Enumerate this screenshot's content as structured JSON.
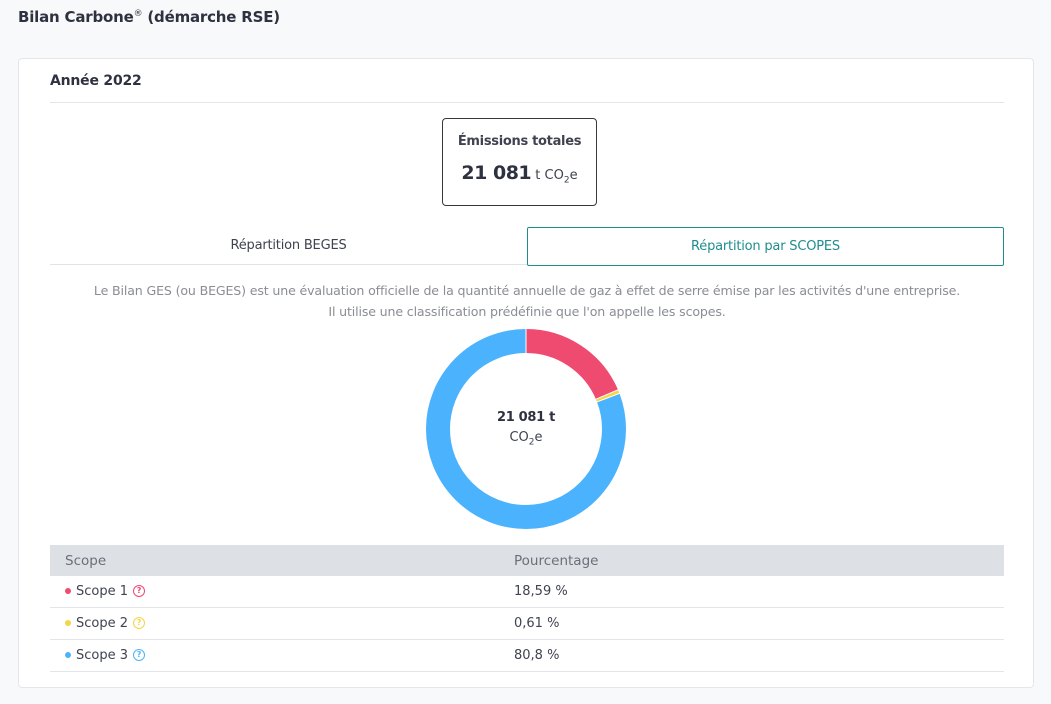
{
  "page": {
    "title": "Bilan Carbone",
    "title_sup": "®",
    "title_suffix": " (démarche RSE)"
  },
  "card": {
    "year_label": "Année 2022"
  },
  "totals": {
    "label": "Émissions totales",
    "value": "21 081",
    "unit_prefix": "t CO",
    "unit_sub": "2",
    "unit_suffix": "e"
  },
  "tabs": [
    {
      "label": "Répartition BEGES",
      "active": false
    },
    {
      "label": "Répartition par SCOPES",
      "active": true
    }
  ],
  "description": {
    "line1": "Le Bilan GES (ou BEGES) est une évaluation officielle de la quantité annuelle de gaz à effet de serre émise par les activités d'une entreprise.",
    "line2": "Il utilise une classification prédéfinie que l'on appelle les scopes."
  },
  "donut": {
    "center_value": "21 081 t",
    "center_unit_prefix": "CO",
    "center_unit_sub": "2",
    "center_unit_suffix": "e"
  },
  "chart_data": {
    "type": "pie",
    "categories": [
      "Scope 1",
      "Scope 2",
      "Scope 3"
    ],
    "values": [
      18.59,
      0.61,
      80.8
    ],
    "colors": [
      "#ef4a6f",
      "#f5d547",
      "#4bb3fd"
    ]
  },
  "table": {
    "headers": [
      "Scope",
      "Pourcentage"
    ],
    "rows": [
      {
        "scope": "Scope 1",
        "percent": "18,59 %",
        "color": "#ef4a6f"
      },
      {
        "scope": "Scope 2",
        "percent": "0,61 %",
        "color": "#f5d547"
      },
      {
        "scope": "Scope 3",
        "percent": "80,8 %",
        "color": "#4bb3fd"
      }
    ],
    "help_glyph": "?",
    "bullet_icon": "dot-icon",
    "help_icon": "question-circle-icon"
  }
}
